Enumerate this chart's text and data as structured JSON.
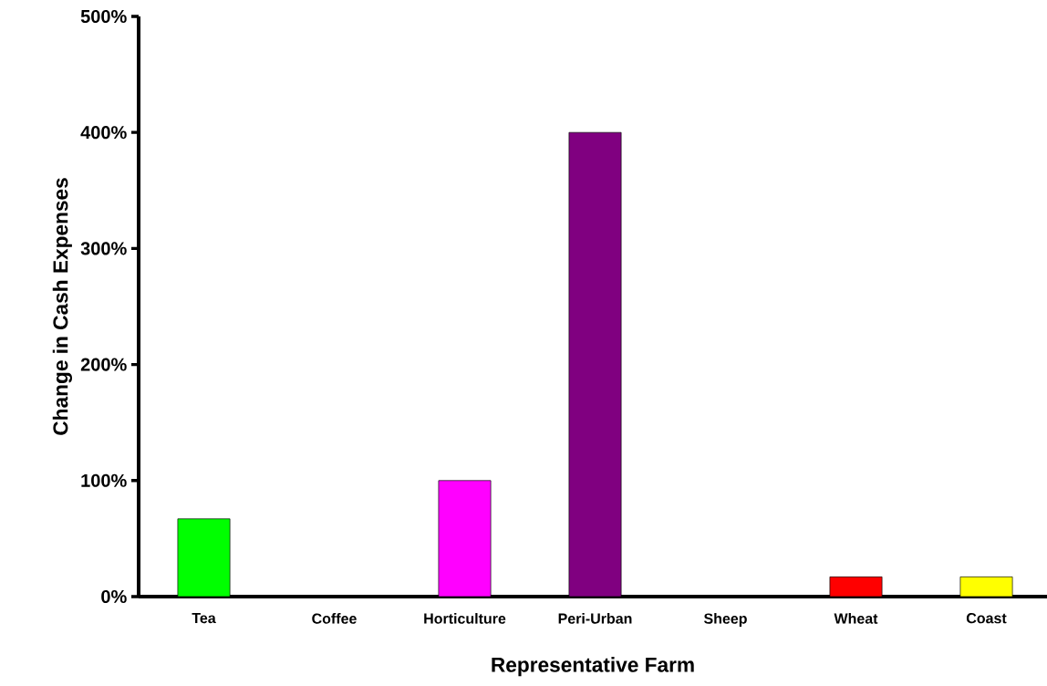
{
  "chart_data": {
    "type": "bar",
    "xlabel": "Representative Farm",
    "ylabel": "Change in Cash Expenses",
    "categories": [
      "Tea",
      "Coffee",
      "Horticulture",
      "Peri-Urban",
      "Sheep",
      "Wheat",
      "Coast"
    ],
    "values": [
      67,
      0,
      100,
      400,
      0,
      17,
      17
    ],
    "colors": [
      "#00ff00",
      null,
      "#ff00ff",
      "#800080",
      null,
      "#ff0000",
      "#ffff00"
    ],
    "ylim": [
      0,
      500
    ],
    "yticks": [
      {
        "value": 0,
        "label": "0%"
      },
      {
        "value": 100,
        "label": "100%"
      },
      {
        "value": 200,
        "label": "200%"
      },
      {
        "value": 300,
        "label": "300%"
      },
      {
        "value": 400,
        "label": "400%"
      },
      {
        "value": 500,
        "label": "500%"
      }
    ]
  }
}
